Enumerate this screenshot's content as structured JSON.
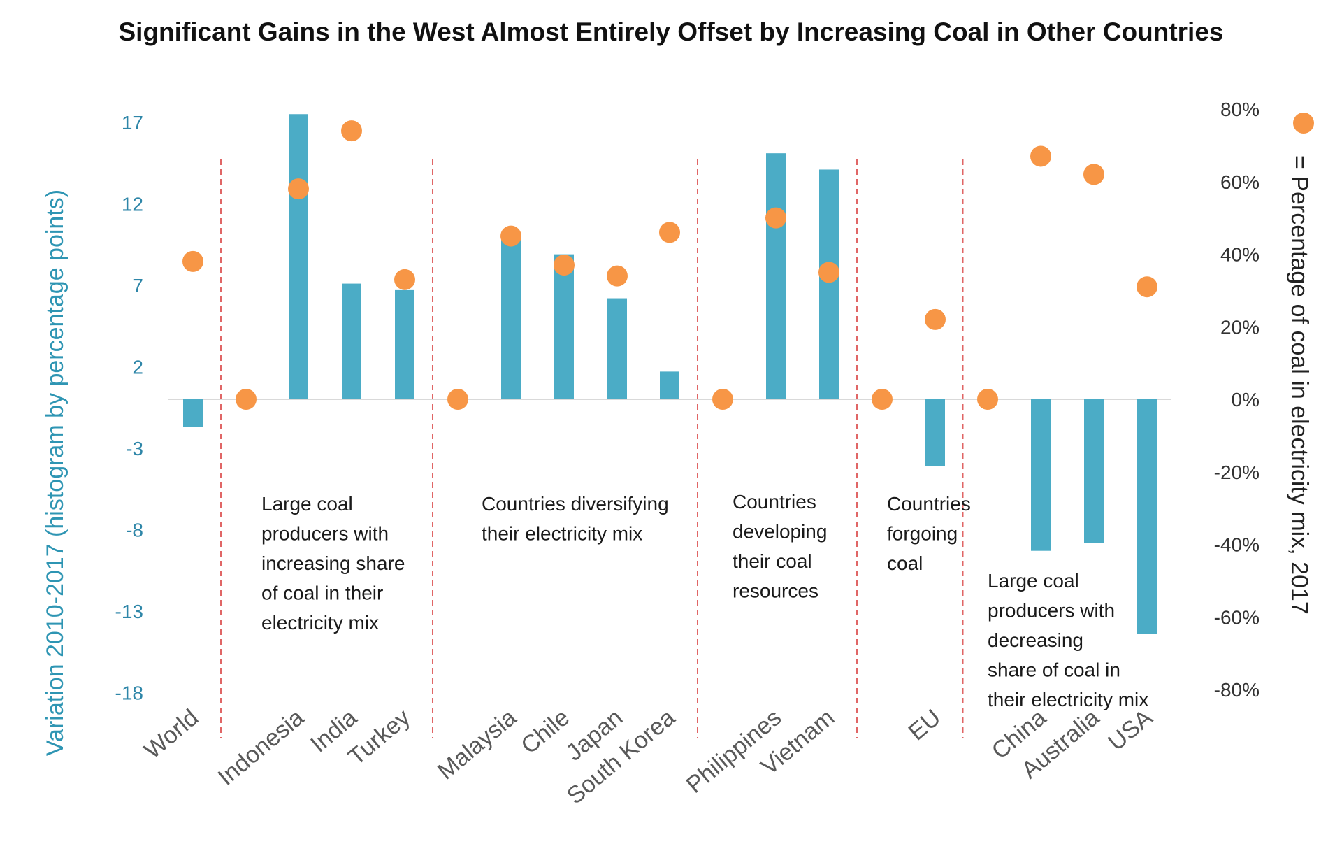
{
  "chart_data": {
    "type": "bar",
    "title": "Significant Gains in the West Almost Entirely Offset by Increasing Coal in Other Countries",
    "ylabel": "Variation 2010-2017 (histogram by percentage points)",
    "y2label": "= Percentage of coal in electricity mix, 2017",
    "ylim": [
      -20,
      18
    ],
    "y2lim": [
      -80,
      80
    ],
    "yticks": [
      "17",
      "12",
      "7",
      "2",
      "-3",
      "-8",
      "-13",
      "-18"
    ],
    "y2ticks": [
      "80%",
      "60%",
      "40%",
      "20%",
      "0%",
      "-20%",
      "-40%",
      "-60%",
      "-80%"
    ],
    "categories": [
      "World",
      "",
      "Indonesia",
      "India",
      "Turkey",
      "",
      "Malaysia",
      "Chile",
      "Japan",
      "South Korea",
      "",
      "Philippines",
      "Vietnam",
      "",
      "EU",
      "",
      "China",
      "Australia",
      "USA"
    ],
    "series": [
      {
        "name": "",
        "type": "bar",
        "axis": "left",
        "color": "#4bacc6",
        "values": [
          -1.7,
          null,
          17.5,
          7.1,
          6.7,
          null,
          10.2,
          8.9,
          6.2,
          1.7,
          null,
          15.1,
          14.1,
          null,
          -4.1,
          null,
          -9.3,
          -8.8,
          -14.4
        ]
      },
      {
        "name": "= Percentage of coal in electricity mix, 2017",
        "type": "scatter",
        "axis": "right",
        "color": "#f79646",
        "values": [
          38,
          0,
          58,
          74,
          33,
          0,
          45,
          37,
          34,
          46,
          0,
          50,
          35,
          0,
          22,
          0,
          67,
          62,
          31
        ]
      }
    ],
    "group_dividers_after": [
      0,
      4,
      9,
      12,
      14
    ],
    "annotations": [
      {
        "lines": [
          "Large coal",
          "producers with",
          "increasing share",
          "of coal in their",
          "electricity mix"
        ]
      },
      {
        "lines": [
          "Countries diversifying",
          "their electricity mix"
        ]
      },
      {
        "lines": [
          "Countries",
          "developing",
          "their coal",
          "resources"
        ]
      },
      {
        "lines": [
          "Countries",
          "forgoing",
          "coal"
        ]
      },
      {
        "lines": [
          "Large coal",
          "producers with",
          "decreasing",
          "share of coal in",
          "their electricity mix"
        ]
      }
    ],
    "legend_position": "right",
    "grid": false
  },
  "colors": {
    "bar": "#4bacc6",
    "dot": "#f79646",
    "divider": "#e06666",
    "zero_line": "#d9d9d9"
  }
}
